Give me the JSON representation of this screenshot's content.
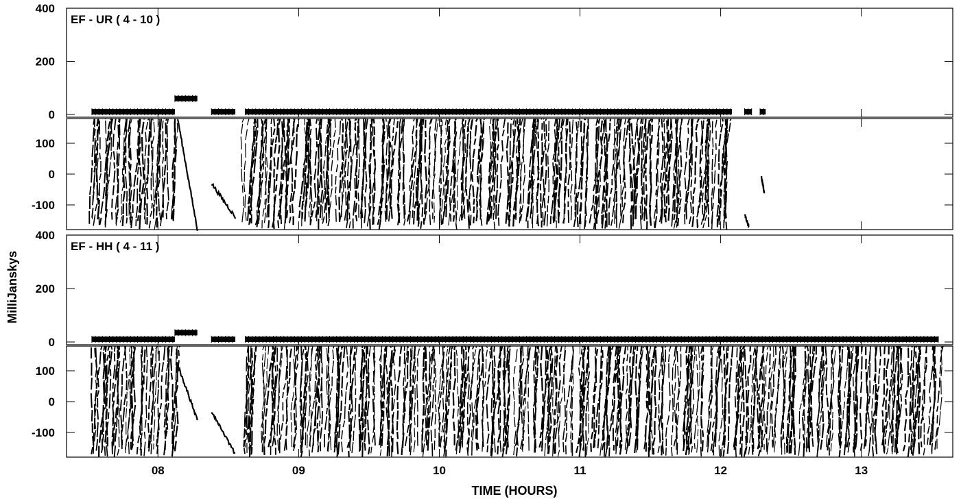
{
  "y_axis_label": "MilliJanskys",
  "x_axis_label": "TIME (HOURS)",
  "chart_data": [
    {
      "type": "scatter",
      "title": "EF - UR ( 4 - 10 )",
      "xlabel": "TIME (HOURS)",
      "ylabel": "MilliJanskys",
      "x_ticks": [
        "08",
        "09",
        "10",
        "11",
        "12",
        "13"
      ],
      "xlim": [
        7.35,
        13.65
      ],
      "amplitude": {
        "ylim": [
          0,
          400
        ],
        "y_ticks": [
          "0",
          "200",
          "400"
        ],
        "segments": [
          {
            "start": 7.53,
            "end": 8.12,
            "value": 10
          },
          {
            "start": 8.12,
            "end": 8.28,
            "value": 60
          },
          {
            "start": 8.38,
            "end": 8.55,
            "value": 10
          },
          {
            "start": 8.62,
            "end": 12.08,
            "value": 10
          },
          {
            "start": 12.17,
            "end": 12.22,
            "value": 10
          },
          {
            "start": 12.28,
            "end": 12.32,
            "value": 10
          }
        ]
      },
      "phase": {
        "ylim": [
          -180,
          180
        ],
        "y_ticks": [
          "100",
          "0",
          "-100"
        ],
        "segments": [
          {
            "start": 7.53,
            "end": 8.12,
            "pattern": "wrapped"
          },
          {
            "start": 8.14,
            "end": 8.28,
            "pattern": "drift",
            "from": 180,
            "to": -180
          },
          {
            "start": 8.38,
            "end": 8.55,
            "pattern": "drift",
            "from": -30,
            "to": -140
          },
          {
            "start": 8.62,
            "end": 12.08,
            "pattern": "wrapped"
          },
          {
            "start": 12.17,
            "end": 12.2,
            "pattern": "drift",
            "from": -130,
            "to": -170
          },
          {
            "start": 12.29,
            "end": 12.31,
            "pattern": "drift",
            "from": -10,
            "to": -60
          }
        ]
      }
    },
    {
      "type": "scatter",
      "title": "EF - HH ( 4 - 11 )",
      "xlabel": "TIME (HOURS)",
      "ylabel": "MilliJanskys",
      "x_ticks": [
        "08",
        "09",
        "10",
        "11",
        "12",
        "13"
      ],
      "xlim": [
        7.35,
        13.65
      ],
      "amplitude": {
        "ylim": [
          0,
          400
        ],
        "y_ticks": [
          "0",
          "200",
          "400"
        ],
        "segments": [
          {
            "start": 7.53,
            "end": 8.12,
            "value": 10
          },
          {
            "start": 8.12,
            "end": 8.28,
            "value": 35
          },
          {
            "start": 8.38,
            "end": 8.55,
            "value": 10
          },
          {
            "start": 8.62,
            "end": 13.55,
            "value": 10
          }
        ]
      },
      "phase": {
        "ylim": [
          -180,
          180
        ],
        "y_ticks": [
          "100",
          "0",
          "-100"
        ],
        "segments": [
          {
            "start": 7.53,
            "end": 8.12,
            "pattern": "wrapped"
          },
          {
            "start": 8.14,
            "end": 8.28,
            "pattern": "drift",
            "from": 120,
            "to": -60
          },
          {
            "start": 8.38,
            "end": 8.55,
            "pattern": "drift",
            "from": -30,
            "to": -170
          },
          {
            "start": 8.62,
            "end": 13.55,
            "pattern": "wrapped"
          }
        ]
      }
    }
  ]
}
